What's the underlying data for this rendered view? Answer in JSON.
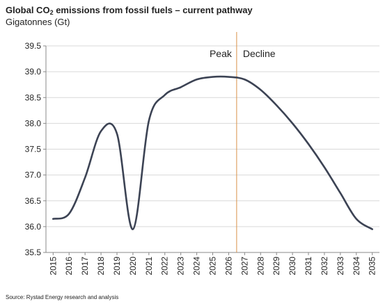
{
  "header": {
    "title_prefix": "Global CO",
    "title_sub": "2",
    "title_suffix": " emissions from fossil fuels – current pathway",
    "subtitle": "Gigatonnes (Gt)"
  },
  "source": "Source: Rystad Energy research and analysis",
  "chart_data": {
    "type": "line",
    "title": "Global CO2 emissions from fossil fuels – current pathway",
    "ylabel": "Gigatonnes (Gt)",
    "xlabel": "",
    "ylim": [
      35.5,
      39.5
    ],
    "yticks": [
      35.5,
      36.0,
      36.5,
      37.0,
      37.5,
      38.0,
      38.5,
      39.0,
      39.5
    ],
    "ytick_labels": [
      "35.5",
      "36.0",
      "36.5",
      "37.0",
      "37.5",
      "38.0",
      "38.5",
      "39.0",
      "39.5"
    ],
    "grid": true,
    "categories": [
      "2015",
      "2016",
      "2017",
      "2018",
      "2019",
      "2020",
      "2021",
      "2022",
      "2023",
      "2024",
      "2025",
      "2026",
      "2027",
      "2028",
      "2029",
      "2030",
      "2031",
      "2032",
      "2033",
      "2034",
      "2035"
    ],
    "series": [
      {
        "color": "#3c4354",
        "x": [
          2015,
          2016,
          2017,
          2018,
          2019,
          2020,
          2021,
          2022,
          2023,
          2024,
          2025,
          2026,
          2027,
          2028,
          2029,
          2030,
          2031,
          2032,
          2033,
          2034,
          2035
        ],
        "values": [
          36.15,
          36.25,
          36.95,
          37.85,
          37.8,
          35.95,
          38.05,
          38.55,
          38.7,
          38.85,
          38.9,
          38.9,
          38.85,
          38.65,
          38.35,
          38.0,
          37.6,
          37.15,
          36.65,
          36.15,
          35.95
        ]
      }
    ],
    "annotations": {
      "vline_x": 2026.5,
      "vline_color": "#d9924a",
      "left_label": "Peak",
      "right_label": "Decline"
    }
  }
}
